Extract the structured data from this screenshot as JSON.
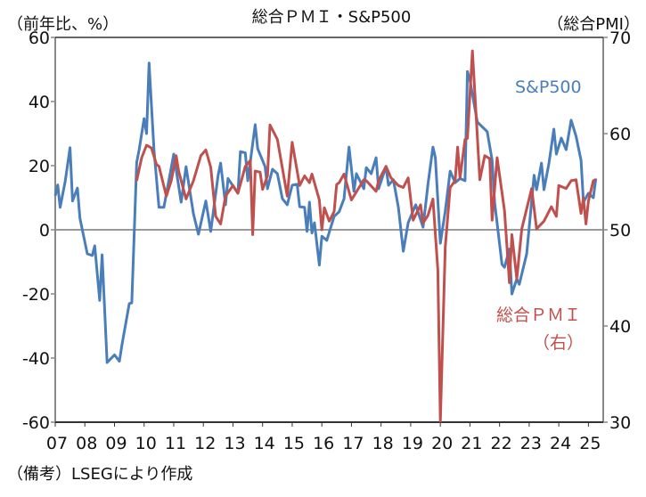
{
  "chart_data": {
    "type": "line",
    "title": "総合ＰＭＩ・S&P500",
    "left_axis_label": "（前年比、%）",
    "right_axis_label": "（総合PMI）",
    "note": "（備考）LSEGにより作成",
    "x_unit": "months since 2007-01",
    "x_range": [
      0,
      222
    ],
    "x_tick_labels": [
      "07",
      "08",
      "09",
      "10",
      "11",
      "12",
      "13",
      "14",
      "15",
      "16",
      "17",
      "18",
      "19",
      "20",
      "21",
      "22",
      "23",
      "24",
      "25"
    ],
    "left_ylim": [
      -60,
      60
    ],
    "left_ticks": [
      60,
      40,
      20,
      0,
      -20,
      -40,
      -60
    ],
    "right_ylim": [
      30,
      70
    ],
    "right_ticks": [
      70,
      60,
      50,
      40,
      30
    ],
    "series": [
      {
        "name": "S&P500",
        "label": "S&P500",
        "axis": "left",
        "color": "#4a7ebb",
        "x": [
          0,
          1,
          2,
          4,
          6,
          7,
          9,
          10,
          13,
          15,
          16,
          18,
          19,
          21,
          24,
          26,
          27,
          30,
          31,
          33,
          34,
          36,
          37,
          38,
          40,
          42,
          44,
          48,
          51,
          53,
          56,
          58,
          61,
          63,
          66,
          67,
          69,
          70,
          74,
          75,
          77,
          78,
          81,
          82,
          85,
          86,
          88,
          90,
          92,
          94,
          96,
          98,
          99,
          101,
          102,
          103,
          104,
          105,
          107,
          108,
          110,
          113,
          115,
          117,
          119,
          121,
          122,
          125,
          126,
          128,
          130,
          131,
          134,
          135,
          137,
          139,
          141,
          143,
          146,
          149,
          151,
          153,
          154,
          156,
          158,
          160,
          162,
          164,
          166,
          167,
          168,
          171,
          175,
          177,
          178,
          181,
          182,
          184,
          185,
          187,
          188,
          191,
          194,
          195,
          197,
          198,
          200,
          202,
          203,
          205,
          207,
          209,
          211,
          213,
          214,
          216,
          218,
          219
        ],
        "y": [
          10.6,
          14,
          7,
          15,
          25.6,
          9,
          13,
          3.6,
          -7.5,
          -8,
          -5,
          -22,
          -7.8,
          -41.4,
          -39,
          -41,
          -36,
          -23,
          -22.8,
          21,
          25,
          34.7,
          30,
          52,
          25,
          7,
          7,
          23.6,
          8.6,
          19.7,
          5,
          -1.4,
          9,
          -0.5,
          17,
          20.8,
          7.8,
          16,
          11.4,
          24.4,
          24,
          15.3,
          32.8,
          25.3,
          19.7,
          12.8,
          18.9,
          17.5,
          9.7,
          7.8,
          13.9,
          14.2,
          7.2,
          7,
          -0.5,
          8.6,
          -1,
          2.2,
          -11,
          -2,
          -3.3,
          4.2,
          5.6,
          9.7,
          25.8,
          12,
          17.5,
          12.8,
          19.4,
          17.5,
          22.5,
          12.8,
          19.7,
          13.9,
          15.6,
          7,
          -6.7,
          2.2,
          7.8,
          0.8,
          14.2,
          25.8,
          22.5,
          -4.2,
          5.8,
          18.3,
          14.7,
          16,
          15.3,
          49.4,
          46.7,
          33.6,
          30.6,
          21.7,
          8.6,
          -10.8,
          -11.7,
          -6,
          -20,
          -15.3,
          -17,
          -7.5,
          17,
          12.5,
          20.8,
          12.5,
          20.8,
          31.4,
          23.6,
          28.6,
          25,
          34.2,
          29.2,
          21.7,
          8.6,
          11.4,
          10,
          16
        ]
      },
      {
        "name": "総合PMI",
        "label": "総合ＰＭＩ",
        "label_sub": "（右）",
        "axis": "right",
        "color": "#c0504d",
        "x": [
          33,
          35,
          37,
          39,
          41,
          42,
          45,
          47,
          49,
          50,
          53,
          56,
          59,
          61,
          63,
          65,
          67,
          69,
          72,
          74,
          77,
          79,
          80,
          81,
          83,
          84,
          86,
          87,
          90,
          94,
          96,
          99,
          101,
          103,
          104,
          107,
          108,
          109,
          111,
          113,
          114,
          115,
          117,
          120,
          125,
          126,
          130,
          131,
          134,
          136,
          139,
          141,
          143,
          145,
          148,
          149,
          151,
          153,
          155,
          156,
          158,
          160,
          162,
          163,
          164,
          166,
          167,
          169,
          172,
          174,
          176,
          177,
          179,
          182,
          184,
          185,
          187,
          189,
          193,
          195,
          198,
          201,
          203,
          204,
          207,
          209,
          211,
          213,
          214,
          215,
          216,
          218,
          219
        ],
        "y": [
          55.1,
          57.5,
          58.8,
          58.5,
          56.8,
          56.6,
          53.5,
          55.1,
          57.7,
          56.1,
          53.2,
          55.1,
          57.7,
          58.3,
          56.5,
          51.4,
          50.6,
          53.5,
          54.6,
          53.8,
          56.6,
          57.2,
          49.5,
          56.1,
          56,
          54.2,
          55.6,
          60.9,
          59.4,
          53.5,
          59.1,
          54.6,
          55.6,
          54.9,
          55.8,
          53.1,
          50,
          52.3,
          50.9,
          51.9,
          54.7,
          54.9,
          55.8,
          53.1,
          55.2,
          55.1,
          54,
          55.1,
          56.6,
          55.4,
          54.6,
          54.4,
          55.4,
          51,
          52.6,
          50.7,
          51.5,
          53.2,
          45.8,
          30.1,
          48.2,
          54.4,
          55.1,
          58.6,
          55.4,
          59.4,
          59.5,
          68.6,
          55.2,
          57.7,
          57.4,
          51,
          57.5,
          52,
          44.5,
          49.5,
          44.9,
          50.1,
          54.3,
          50.1,
          50.9,
          52.4,
          51.4,
          54.6,
          54.3,
          55.1,
          55.2,
          51.7,
          53.3,
          50.6,
          53,
          55.1,
          55.2
        ]
      }
    ]
  }
}
